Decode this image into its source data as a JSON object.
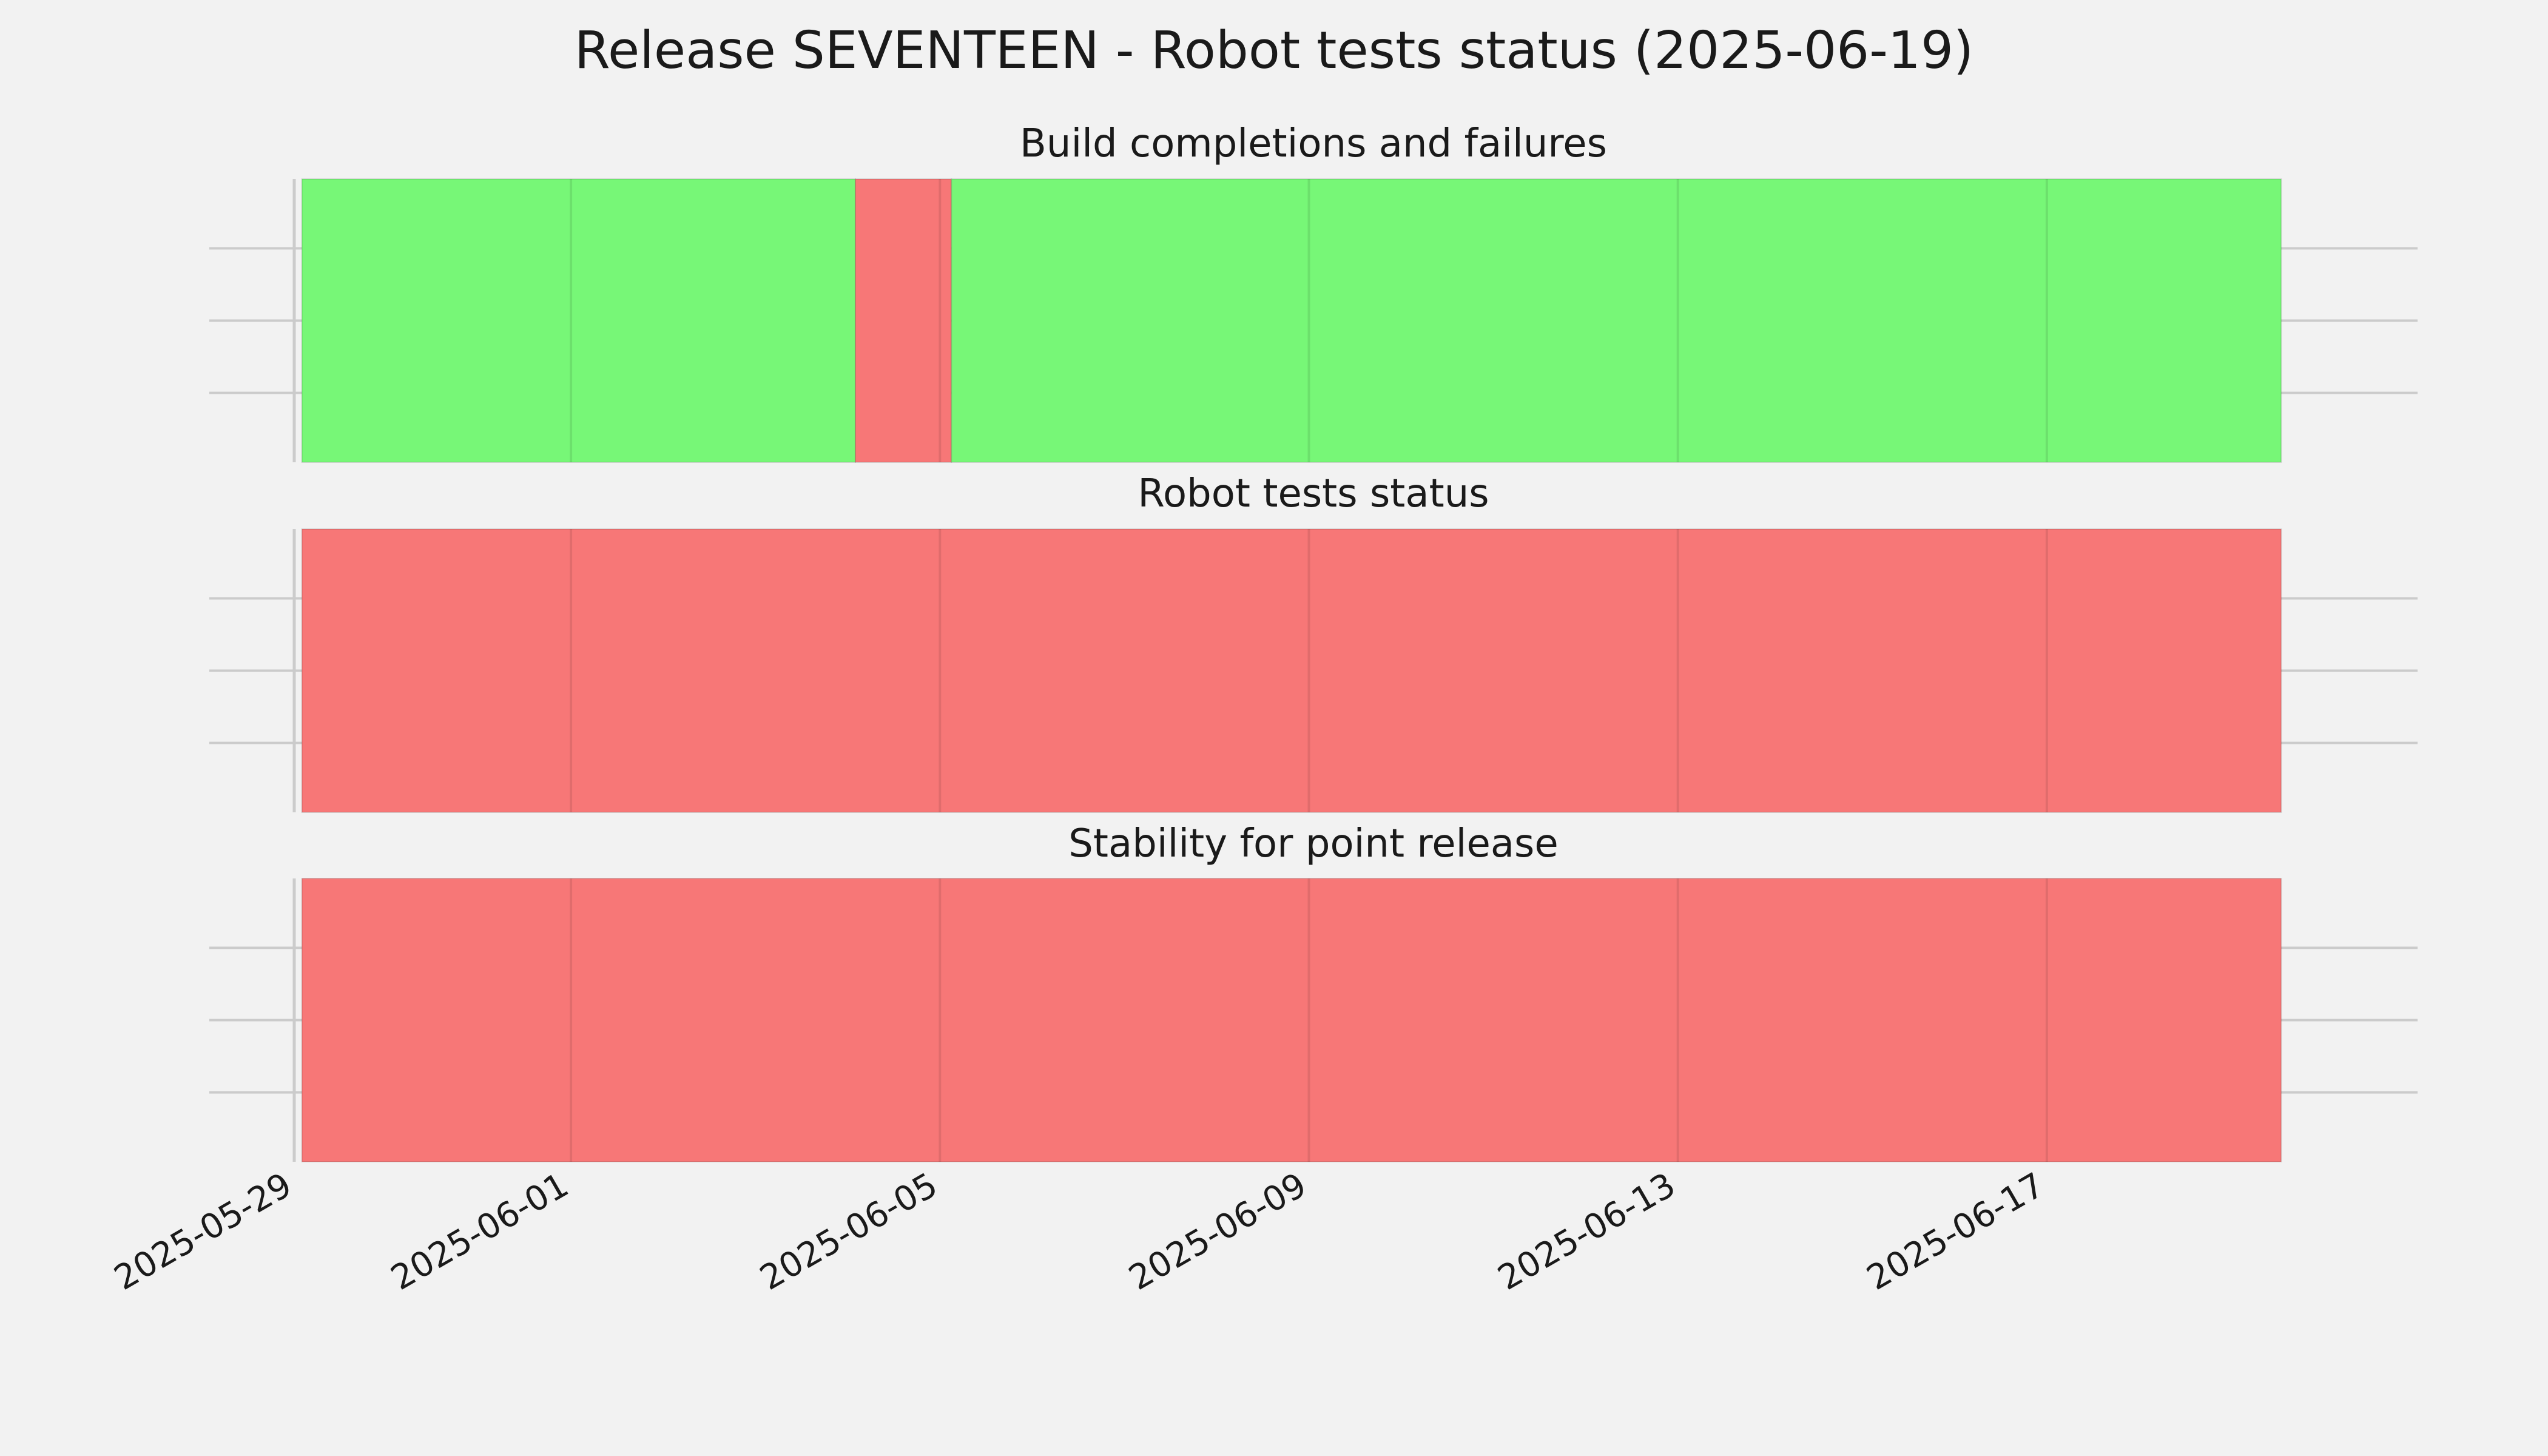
{
  "chart_data": {
    "type": "timeline",
    "title": "Release SEVENTEEN - Robot tests status (2025-06-19)",
    "x_axis": {
      "type": "date",
      "range": [
        "2025-05-29",
        "2025-06-20"
      ],
      "ticks": [
        "2025-05-29",
        "2025-06-01",
        "2025-06-05",
        "2025-06-09",
        "2025-06-13",
        "2025-06-17"
      ]
    },
    "grid": true,
    "colors": {
      "pass": "#77f777",
      "fail": "#f77777",
      "background": "#f2f2f2"
    },
    "panels": [
      {
        "title": "Build completions and failures",
        "segments": [
          {
            "start": "2025-05-29T02:00",
            "end": "2025-06-04T02:00",
            "status": "pass"
          },
          {
            "start": "2025-06-04T02:00",
            "end": "2025-06-05T03:00",
            "status": "fail"
          },
          {
            "start": "2025-06-05T03:00",
            "end": "2025-06-19T13:00",
            "status": "pass"
          }
        ]
      },
      {
        "title": "Robot tests status",
        "segments": [
          {
            "start": "2025-05-29T02:00",
            "end": "2025-06-19T13:00",
            "status": "fail"
          }
        ]
      },
      {
        "title": "Stability for point release",
        "segments": [
          {
            "start": "2025-05-29T02:00",
            "end": "2025-06-19T13:00",
            "status": "fail"
          }
        ]
      }
    ]
  }
}
